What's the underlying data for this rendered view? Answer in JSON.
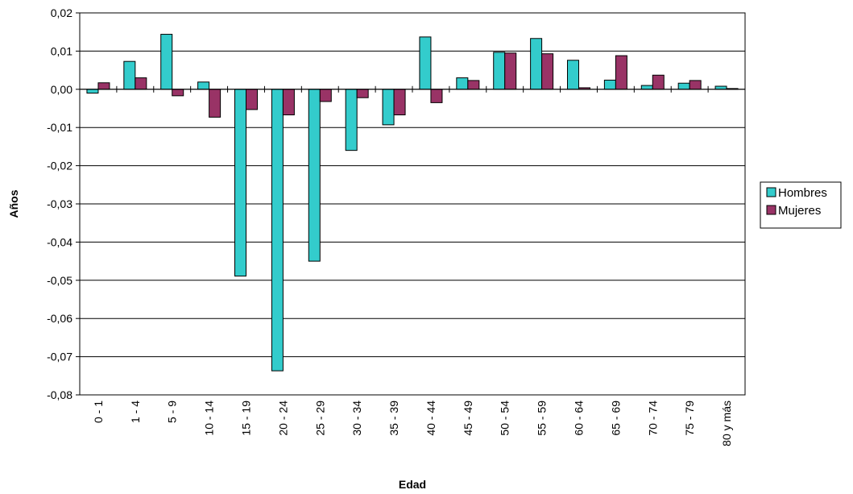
{
  "chart_data": {
    "type": "bar",
    "xlabel": "Edad",
    "ylabel": "Años",
    "ylim": [
      -0.08,
      0.02
    ],
    "yticks": [
      0.02,
      0.01,
      0.0,
      -0.01,
      -0.02,
      -0.03,
      -0.04,
      -0.05,
      -0.06,
      -0.07,
      -0.08
    ],
    "ytick_labels": [
      "0,02",
      "0,01",
      "0,00",
      "-0,01",
      "-0,02",
      "-0,03",
      "-0,04",
      "-0,05",
      "-0,06",
      "-0,07",
      "-0,08"
    ],
    "grid": true,
    "legend_position": "right",
    "categories": [
      "0 - 1",
      "1 - 4",
      "5 - 9",
      "10 - 14",
      "15 - 19",
      "20 - 24",
      "25 - 29",
      "30 - 34",
      "35 - 39",
      "40 - 44",
      "45 - 49",
      "50 - 54",
      "55 - 59",
      "60 - 64",
      "65 - 69",
      "70 - 74",
      "75 - 79",
      "80 y más"
    ],
    "series": [
      {
        "name": "Hombres",
        "color": "#33CCCC",
        "values": [
          -0.001,
          0.0073,
          0.0144,
          0.0019,
          -0.0489,
          -0.0737,
          -0.045,
          -0.016,
          -0.0093,
          0.0137,
          0.003,
          0.0097,
          0.0133,
          0.0076,
          0.0024,
          0.001,
          0.0016,
          0.0008
        ]
      },
      {
        "name": "Mujeres",
        "color": "#993366",
        "values": [
          0.0017,
          0.003,
          -0.0017,
          -0.0073,
          -0.0053,
          -0.0067,
          -0.0032,
          -0.0022,
          -0.0067,
          -0.0035,
          0.0023,
          0.0095,
          0.0093,
          0.0004,
          0.0088,
          0.0037,
          0.0023,
          0.0002
        ]
      }
    ]
  }
}
